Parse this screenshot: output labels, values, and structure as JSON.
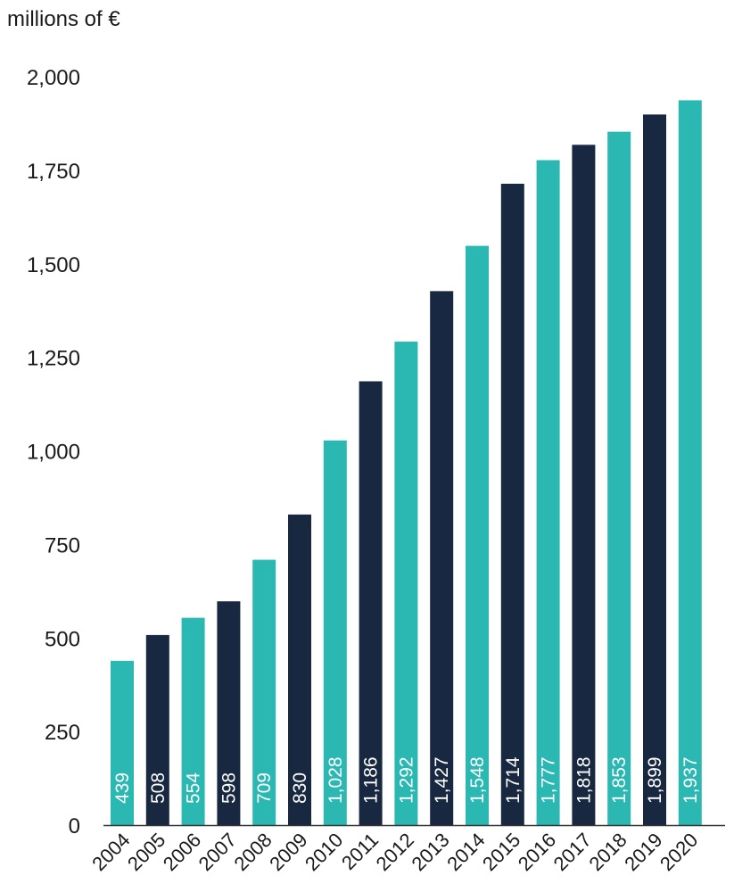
{
  "unit_label": "millions of €",
  "colors": {
    "teal": "#2bb8b3",
    "navy": "#182841",
    "axis": "#333333"
  },
  "chart_data": {
    "type": "bar",
    "title": "",
    "xlabel": "",
    "ylabel": "millions of €",
    "ylim": [
      0,
      2000
    ],
    "yticks": [
      0,
      250,
      500,
      750,
      1000,
      1250,
      1500,
      1750,
      2000
    ],
    "ytick_labels": [
      "0",
      "250",
      "500",
      "750",
      "1,000",
      "1,250",
      "1,500",
      "1,750",
      "2,000"
    ],
    "grid": false,
    "categories": [
      "2004",
      "2005",
      "2006",
      "2007",
      "2008",
      "2009",
      "2010",
      "2011",
      "2012",
      "2013",
      "2014",
      "2015",
      "2016",
      "2017",
      "2018",
      "2019",
      "2020"
    ],
    "values": [
      439,
      508,
      554,
      598,
      709,
      830,
      1028,
      1186,
      1292,
      1427,
      1548,
      1714,
      1777,
      1818,
      1853,
      1899,
      1937
    ],
    "value_labels": [
      "439",
      "508",
      "554",
      "598",
      "709",
      "830",
      "1,028",
      "1,186",
      "1,292",
      "1,427",
      "1,548",
      "1,714",
      "1,777",
      "1,818",
      "1,853",
      "1,899",
      "1,937"
    ],
    "bar_colors": [
      "teal",
      "navy",
      "teal",
      "navy",
      "teal",
      "navy",
      "teal",
      "navy",
      "teal",
      "navy",
      "teal",
      "navy",
      "teal",
      "navy",
      "teal",
      "navy",
      "teal"
    ]
  }
}
